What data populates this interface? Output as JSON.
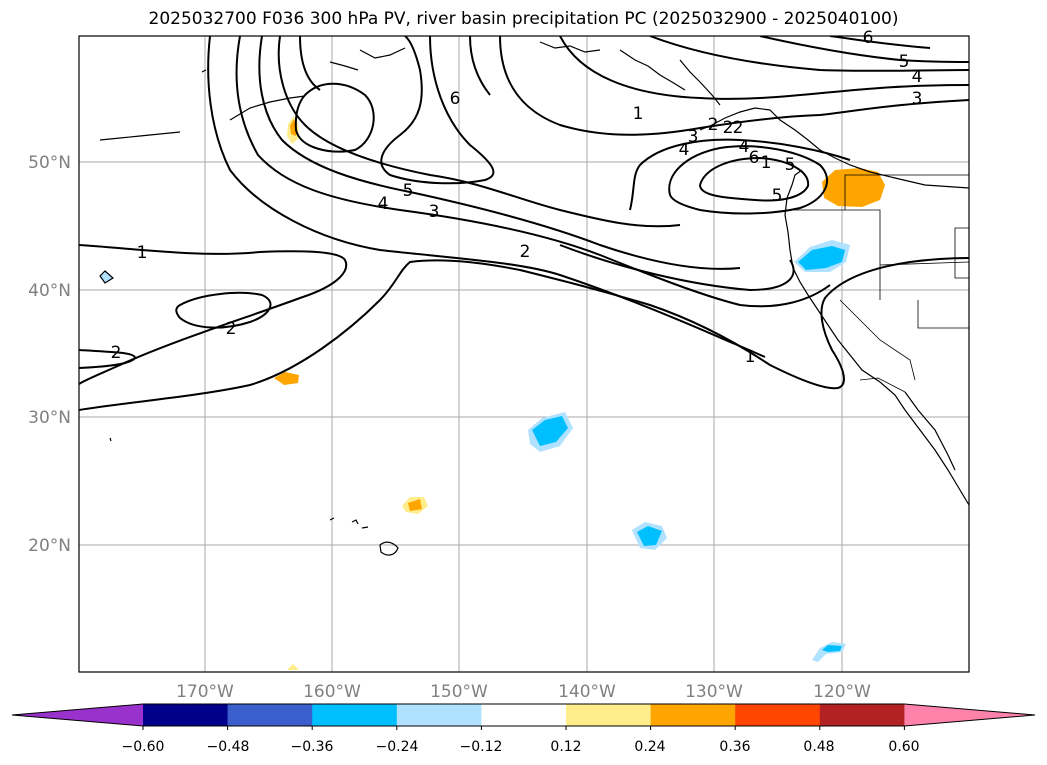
{
  "title": "2025032700 F036 300 hPa PV, river basin precipitation PC (2025032900 - 2025040100)",
  "map": {
    "lat_labels": [
      "50°N",
      "40°N",
      "30°N",
      "20°N"
    ],
    "lon_labels": [
      "170°W",
      "160°W",
      "150°W",
      "140°W",
      "130°W",
      "120°W"
    ],
    "grid": true,
    "contour_labels": [
      "1",
      "2",
      "4",
      "5",
      "3",
      "6",
      "2",
      "1",
      "2",
      "2",
      "5",
      "4",
      "3",
      "1",
      "2",
      "4",
      "5",
      "6",
      "1",
      "2",
      "3",
      "4",
      "5",
      "6"
    ]
  },
  "colorbar": {
    "ticks": [
      "−0.60",
      "−0.48",
      "−0.36",
      "−0.24",
      "−0.12",
      "0.12",
      "0.24",
      "0.36",
      "0.48",
      "0.60"
    ],
    "colors": [
      "#9932cc",
      "#00008b",
      "#3a5fcd",
      "#00bfff",
      "#b0e2ff",
      "#ffffff",
      "#ffec8b",
      "#ffa500",
      "#ff4500",
      "#b22222",
      "#ff82ab"
    ],
    "extend": "both"
  }
}
